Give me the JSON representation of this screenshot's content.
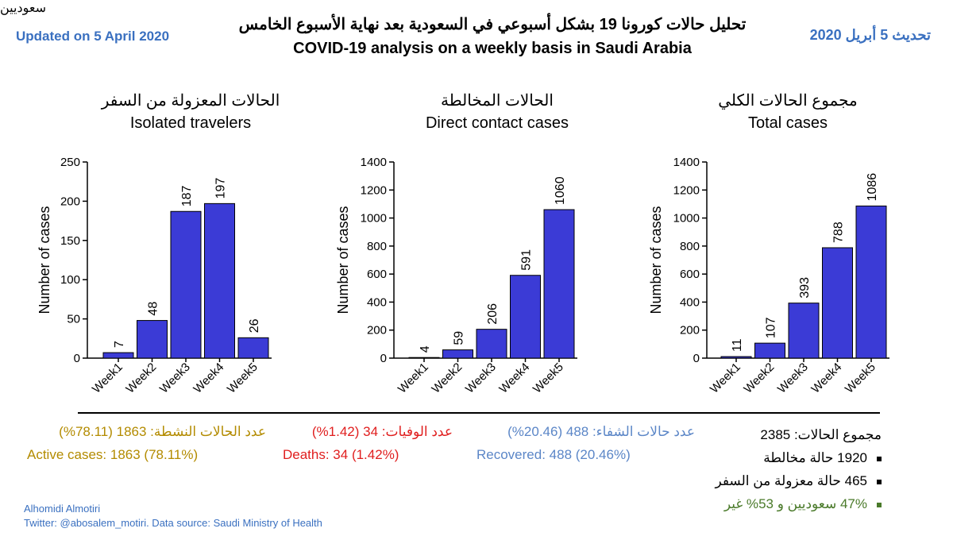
{
  "header": {
    "updated_en": "Updated on 5 April 2020",
    "updated_ar": "تحديث 5 أبريل 2020",
    "title_ar": "تحليل حالات كورونا 19 بشكل أسبوعي في السعودية بعد نهاية الأسبوع الخامس",
    "title_en": "COVID-19 analysis on a weekly basis in Saudi Arabia"
  },
  "chart_data": [
    {
      "type": "bar",
      "title_ar": "الحالات المعزولة من السفر",
      "title": "Isolated travelers",
      "xlabel": "",
      "ylabel": "Number of cases",
      "categories": [
        "Week1",
        "Week2",
        "Week3",
        "Week4",
        "Week5"
      ],
      "values": [
        7,
        48,
        187,
        197,
        26
      ],
      "ylim": [
        0,
        250
      ],
      "yticks": [
        0,
        50,
        100,
        150,
        200,
        250
      ],
      "bar_color": "#3b3bd6"
    },
    {
      "type": "bar",
      "title_ar": "الحالات المخالطة",
      "title": "Direct contact cases",
      "xlabel": "",
      "ylabel": "Number of cases",
      "categories": [
        "Week1",
        "Week2",
        "Week3",
        "Week4",
        "Week5"
      ],
      "values": [
        4,
        59,
        206,
        591,
        1060
      ],
      "ylim": [
        0,
        1400
      ],
      "yticks": [
        0,
        200,
        400,
        600,
        800,
        1000,
        1200,
        1400
      ],
      "bar_color": "#3b3bd6"
    },
    {
      "type": "bar",
      "title_ar": "مجموع الحالات الكلي",
      "title": "Total cases",
      "xlabel": "",
      "ylabel": "Number of cases",
      "categories": [
        "Week1",
        "Week2",
        "Week3",
        "Week4",
        "Week5"
      ],
      "values": [
        11,
        107,
        393,
        788,
        1086
      ],
      "ylim": [
        0,
        1400
      ],
      "yticks": [
        0,
        200,
        400,
        600,
        800,
        1000,
        1200,
        1400
      ],
      "bar_color": "#3b3bd6"
    }
  ],
  "stats": {
    "active_ar": "عدد الحالات النشطة: 1863 (78.11%)",
    "active_en": "Active cases: 1863 (78.11%)",
    "deaths_ar": "عدد الوفيات: 34 (1.42%)",
    "deaths_en": "Deaths: 34 (1.42%)",
    "recovered_ar": "عدد حالات الشفاء: 488 (20.46%)",
    "recovered_en": "Recovered: 488 (20.46%)"
  },
  "summary": {
    "total": "مجموع الحالات: 2385",
    "contact": "1920 حالة مخالطة",
    "isolated": "465 حالة معزولة من السفر",
    "nationality_line1": "47% سعوديين و 53% غير",
    "nationality_line2": "سعوديين"
  },
  "footer": {
    "author": "Alhomidi Almotiri",
    "source": "Twitter: @abosalem_motiri. Data source: Saudi Ministry of Health"
  },
  "colors": {
    "header_blue": "#3a70c0",
    "active": "#b38b00",
    "deaths": "#e01e1e",
    "recovered": "#5b86c7",
    "nationality": "#4a7a2a"
  }
}
